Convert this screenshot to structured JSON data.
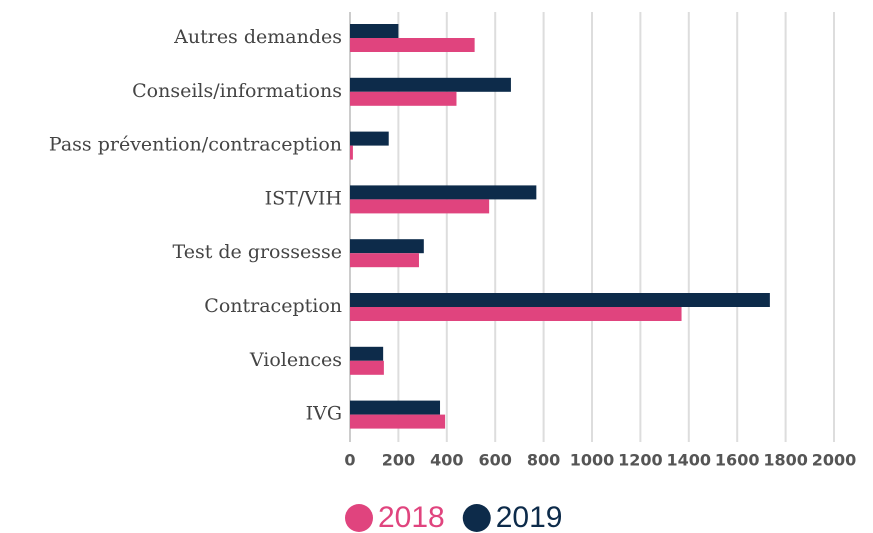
{
  "chart_data": {
    "type": "hbar",
    "categories": [
      "Autres demandes",
      "Conseils/informations",
      "Pass prévention/contraception",
      "IST/VIH",
      "Test de grossesse",
      "Contraception",
      "Violences",
      "IVG"
    ],
    "series": [
      {
        "name": "2018",
        "color": "#e0447e",
        "values": [
          515,
          440,
          12,
          575,
          285,
          1370,
          140,
          393
        ]
      },
      {
        "name": "2019",
        "color": "#0d2b4a",
        "values": [
          200,
          665,
          160,
          770,
          305,
          1735,
          137,
          372
        ]
      }
    ],
    "xlim": [
      0,
      2000
    ],
    "xticks": [
      0,
      200,
      400,
      600,
      800,
      1000,
      1200,
      1400,
      1600,
      1800,
      2000
    ],
    "grid": true,
    "legend": "bottom"
  }
}
